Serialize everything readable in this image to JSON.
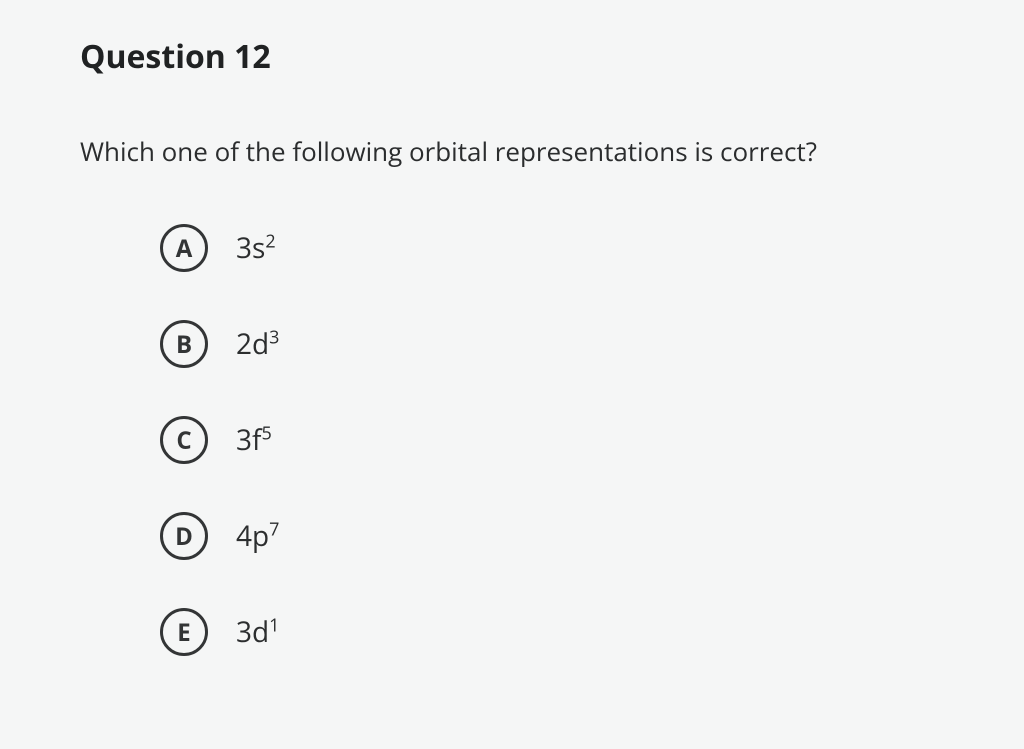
{
  "question": {
    "title": "Question 12",
    "prompt": "Which one of the following orbital representations is correct?"
  },
  "choices": [
    {
      "letter": "A",
      "base": "3s",
      "superscript": "2"
    },
    {
      "letter": "B",
      "base": "2d",
      "superscript": "3"
    },
    {
      "letter": "C",
      "base": "3f",
      "superscript": "5"
    },
    {
      "letter": "D",
      "base": "4p",
      "superscript": "7"
    },
    {
      "letter": "E",
      "base": "3d",
      "superscript": "1"
    }
  ],
  "styling": {
    "background_color": "#f5f6f6",
    "text_color": "#2a2c2d",
    "title_fontsize": 32,
    "prompt_fontsize": 26,
    "choice_fontsize": 28,
    "circle_border_color": "#333536",
    "circle_border_width": 3,
    "circle_diameter": 48
  }
}
